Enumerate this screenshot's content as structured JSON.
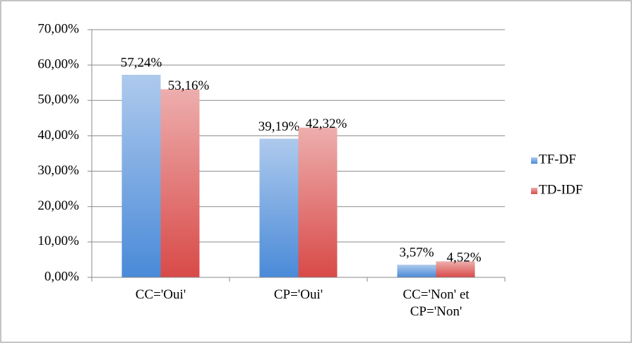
{
  "chart_data": {
    "type": "bar",
    "categories": [
      "CC='Oui'",
      "CP='Oui'",
      "CC='Non' et\nCP='Non'"
    ],
    "series": [
      {
        "name": "TF-DF",
        "color": "#4a8ad8",
        "values": [
          57.24,
          39.19,
          3.57
        ],
        "value_labels": [
          "57,24%",
          "39,19%",
          "3,57%"
        ]
      },
      {
        "name": "TD-IDF",
        "color": "#d84a48",
        "values": [
          53.16,
          42.32,
          4.52
        ],
        "value_labels": [
          "53,16%",
          "42,32%",
          "4,52%"
        ]
      }
    ],
    "ylim": [
      0,
      70
    ],
    "yticks": [
      {
        "value": 0,
        "label": "0,00%"
      },
      {
        "value": 10,
        "label": "10,00%"
      },
      {
        "value": 20,
        "label": "20,00%"
      },
      {
        "value": 30,
        "label": "30,00%"
      },
      {
        "value": 40,
        "label": "40,00%"
      },
      {
        "value": 50,
        "label": "50,00%"
      },
      {
        "value": 60,
        "label": "60,00%"
      },
      {
        "value": 70,
        "label": "70,00%"
      }
    ],
    "grid": true,
    "legend": "right"
  }
}
